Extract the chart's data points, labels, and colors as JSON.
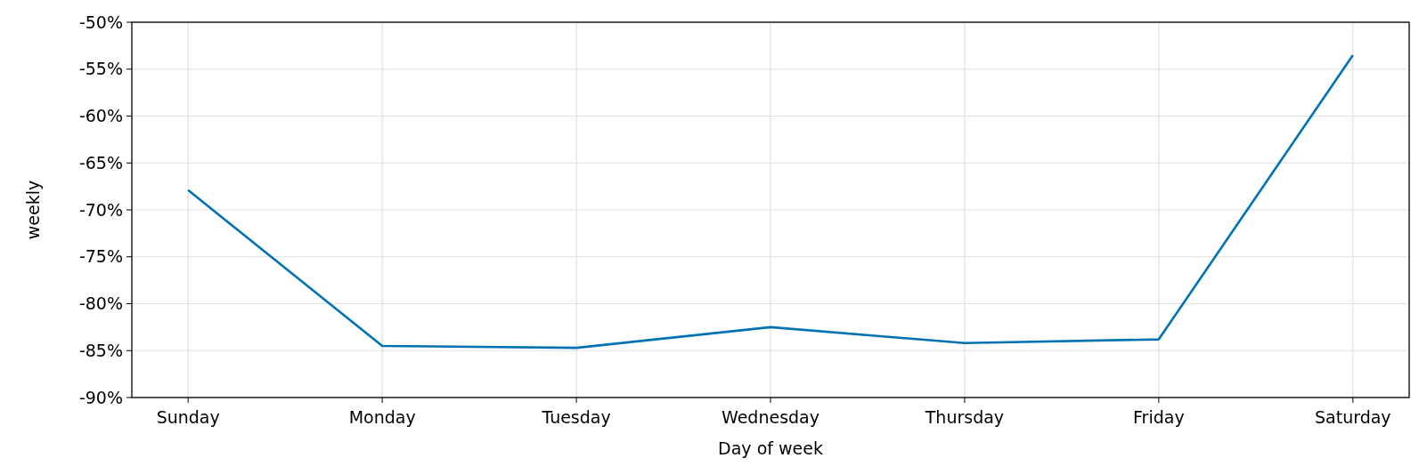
{
  "chart_data": {
    "type": "line",
    "xlabel": "Day of week",
    "ylabel": "weekly",
    "categories": [
      "Sunday",
      "Monday",
      "Tuesday",
      "Wednesday",
      "Thursday",
      "Friday",
      "Saturday"
    ],
    "series": [
      {
        "color": "#0072b2",
        "values": [
          -67.9,
          -84.5,
          -84.7,
          -82.5,
          -84.2,
          -83.8,
          -53.5
        ]
      }
    ],
    "ylim": [
      -90,
      -50
    ],
    "yticks": [
      {
        "value": -90,
        "label": "-90%"
      },
      {
        "value": -85,
        "label": "-85%"
      },
      {
        "value": -80,
        "label": "-80%"
      },
      {
        "value": -75,
        "label": "-75%"
      },
      {
        "value": -70,
        "label": "-70%"
      },
      {
        "value": -65,
        "label": "-65%"
      },
      {
        "value": -60,
        "label": "-60%"
      },
      {
        "value": -55,
        "label": "-55%"
      },
      {
        "value": -50,
        "label": "-50%"
      }
    ],
    "grid": true,
    "marker": "none",
    "line_style": "solid"
  }
}
